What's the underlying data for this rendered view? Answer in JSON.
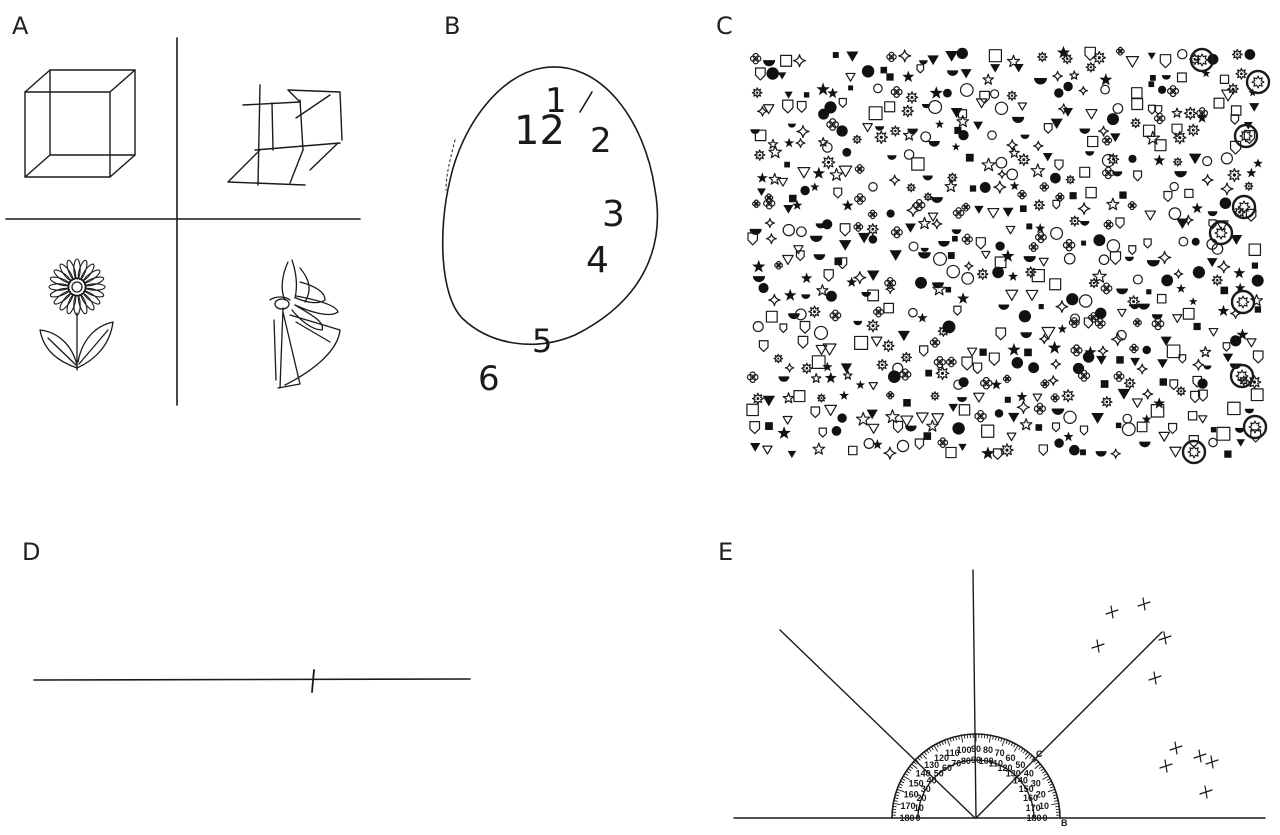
{
  "panels": {
    "a": {
      "label": "A"
    },
    "b": {
      "label": "B",
      "clock_numbers": [
        "12",
        "1",
        "2",
        "3",
        "4",
        "5",
        "6"
      ]
    },
    "c": {
      "label": "C"
    },
    "d": {
      "label": "D"
    },
    "e": {
      "label": "E",
      "protractor_outer": [
        "180",
        "170",
        "160",
        "150",
        "140",
        "130",
        "120",
        "110",
        "100",
        "90",
        "80",
        "70",
        "60",
        "50",
        "40",
        "30",
        "20",
        "10",
        "0"
      ],
      "protractor_inner": [
        "0",
        "10",
        "20",
        "30",
        "40",
        "50",
        "60",
        "70",
        "80",
        "90",
        "100",
        "110",
        "120",
        "130",
        "140",
        "150",
        "160",
        "170",
        "180"
      ],
      "protractor_mark": "C",
      "protractor_tail": "B"
    }
  },
  "icons": {
    "cube": "cube-drawing-icon",
    "flower": "flower-drawing-icon"
  }
}
